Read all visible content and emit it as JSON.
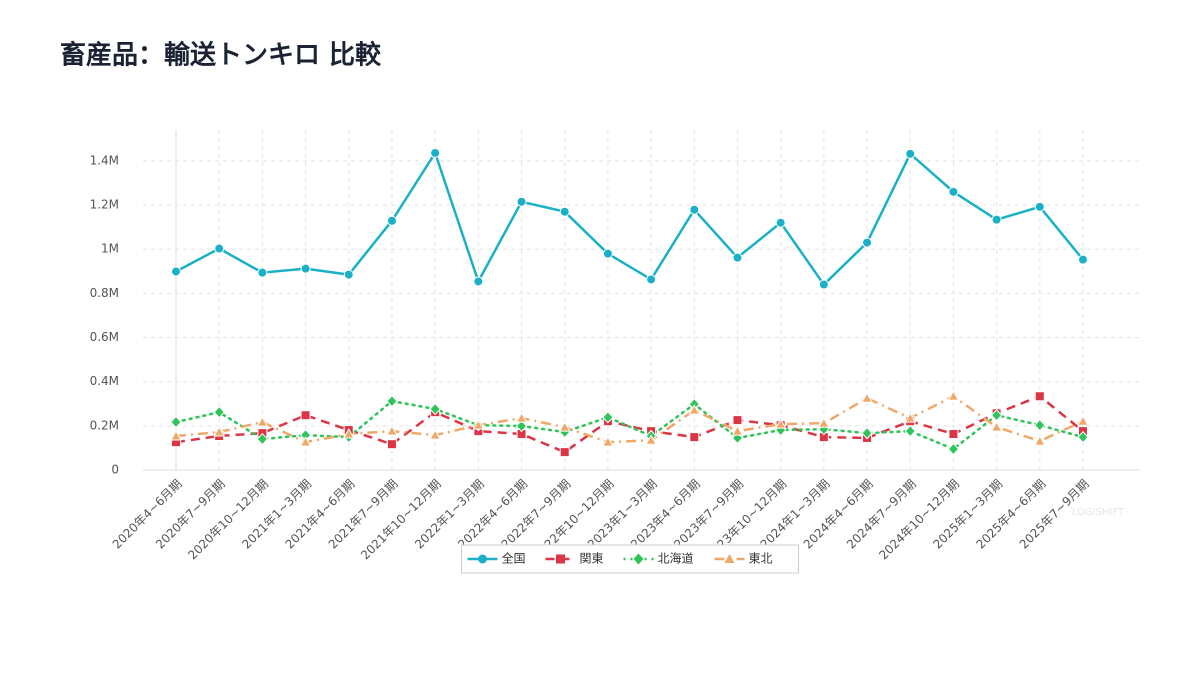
{
  "chart_data": {
    "type": "line",
    "title": "畜産品：輸送トンキロ 比較",
    "watermark": "LOGISHIFT",
    "categories": [
      "2020年4~6月期",
      "2020年7~9月期",
      "2020年10~12月期",
      "2021年1~3月期",
      "2021年4~6月期",
      "2021年7~9月期",
      "2021年10~12月期",
      "2022年1~3月期",
      "2022年4~6月期",
      "2022年7~9月期",
      "2022年10~12月期",
      "2023年1~3月期",
      "2023年4~6月期",
      "2023年7~9月期",
      "2023年10~12月期",
      "2024年1~3月期",
      "2024年4~6月期",
      "2024年7~9月期",
      "2024年10~12月期",
      "2025年1~3月期",
      "2025年4~6月期",
      "2025年7~9月期"
    ],
    "series": [
      {
        "name": "全国",
        "color": "#1ab0c8",
        "dash": "solid",
        "marker": "circle",
        "values": [
          899000,
          1003000,
          894000,
          912000,
          885000,
          1129000,
          1436000,
          854000,
          1215000,
          1170000,
          980000,
          863000,
          1179000,
          962000,
          1120000,
          840000,
          1030000,
          1432000,
          1260000,
          1134000,
          1192000,
          953000
        ]
      },
      {
        "name": "関東",
        "color": "#dc3545",
        "dash": "dashed",
        "marker": "square",
        "values": [
          126000,
          154000,
          167000,
          248000,
          181000,
          117000,
          262000,
          176000,
          163000,
          81000,
          221000,
          176000,
          149000,
          226000,
          203000,
          149000,
          145000,
          221000,
          163000,
          257000,
          334000,
          176000
        ]
      },
      {
        "name": "北海道",
        "color": "#2ec45a",
        "dash": "dotted",
        "marker": "diamond",
        "values": [
          217000,
          262000,
          140000,
          158000,
          149000,
          312000,
          276000,
          203000,
          199000,
          172000,
          239000,
          154000,
          298000,
          145000,
          181000,
          185000,
          167000,
          176000,
          95000,
          248000,
          203000,
          149000
        ]
      },
      {
        "name": "東北",
        "color": "#f0a868",
        "dash": "dashdot",
        "marker": "triangle",
        "values": [
          154000,
          172000,
          217000,
          126000,
          163000,
          176000,
          158000,
          203000,
          235000,
          194000,
          126000,
          135000,
          271000,
          176000,
          208000,
          212000,
          325000,
          235000,
          334000,
          194000,
          131000,
          221000
        ]
      }
    ],
    "ylim": [
      0,
      1540000
    ],
    "yticks": [
      0,
      {
        "value": 200000,
        "label": "0.2M"
      },
      {
        "value": 400000,
        "label": "0.4M"
      },
      {
        "value": 600000,
        "label": "0.6M"
      },
      {
        "value": 800000,
        "label": "0.8M"
      },
      {
        "value": 1000000,
        "label": "1M"
      },
      {
        "value": 1200000,
        "label": "1.2M"
      },
      {
        "value": 1400000,
        "label": "1.4M"
      }
    ],
    "grid": true,
    "legend": "bottom"
  }
}
